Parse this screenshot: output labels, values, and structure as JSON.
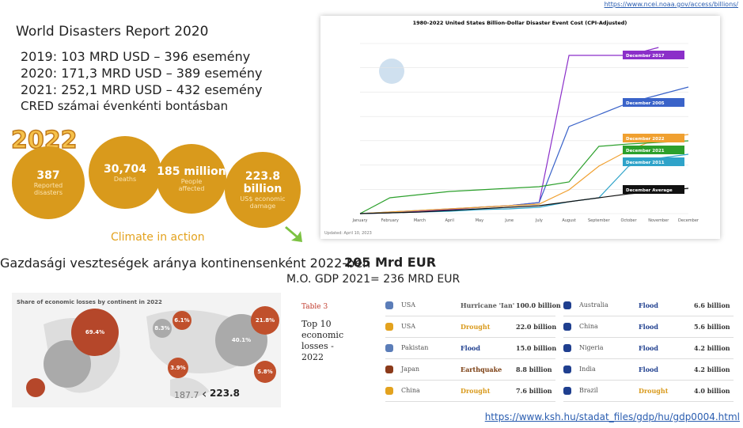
{
  "source_top": "https://www.ncei.noaa.gov/access/billions/",
  "title": "World Disasters Report 2020",
  "stats": [
    "2019: 103 MRD USD – 396 esemény",
    "2020: 171,3 MRD USD – 389 esemény",
    "2021: 252,1 MRD USD – 432 esemény",
    "CRED számai évenkénti bontásban"
  ],
  "year_badge": "2022",
  "bubbles": [
    {
      "value": "387",
      "label": "Reported disasters"
    },
    {
      "value": "30,704",
      "label": "Deaths"
    },
    {
      "value": "185 million",
      "label": "People affected"
    },
    {
      "value": "223.8 billion",
      "label": "US$ economic damage"
    }
  ],
  "climate": "Climate in action",
  "noaa_chart": {
    "title": "1980-2022 United States Billion-Dollar Disaster Event Cost (CPI-Adjusted)",
    "months": [
      "January",
      "February",
      "March",
      "April",
      "May",
      "June",
      "July",
      "August",
      "September",
      "October",
      "November",
      "December"
    ],
    "callouts": [
      "December 2017",
      "December 2005",
      "December 2022",
      "December 2021",
      "December 2011",
      "December Average"
    ],
    "updated": "Updated: April 10, 2023"
  },
  "losses_title": "Gazdasági veszteségek aránya kontinensenként 2022-ben",
  "map_title": "Share of economic losses by continent in 2022",
  "map_labels": [
    "69.4%",
    "40.1%",
    "21.8%",
    "8.3%",
    "6.1%",
    "5.8%",
    "3.9%"
  ],
  "compare": [
    "187.7",
    "223.8"
  ],
  "eur_total": "205 Mrd EUR",
  "gdp": "M.O. GDP 2021= 236 MRD EUR",
  "table": {
    "caption": "Table 3",
    "heading": "Top 10 economic losses - 2022",
    "rows": [
      [
        [
          "USA",
          "Hurricane 'Ian'",
          "100.0 billion"
        ],
        [
          "Australia",
          "Flood",
          "6.6 billion"
        ]
      ],
      [
        [
          "USA",
          "Drought",
          "22.0 billion"
        ],
        [
          "China",
          "Flood",
          "5.6 billion"
        ]
      ],
      [
        [
          "Pakistan",
          "Flood",
          "15.0 billion"
        ],
        [
          "Nigeria",
          "Flood",
          "4.2 billion"
        ]
      ],
      [
        [
          "Japan",
          "Earthquake",
          "8.8 billion"
        ],
        [
          "India",
          "Flood",
          "4.2 billion"
        ]
      ],
      [
        [
          "China",
          "Drought",
          "7.6 billion"
        ],
        [
          "Brazil",
          "Drought",
          "4.0 billion"
        ]
      ]
    ]
  },
  "source_bottom": "https://www.ksh.hu/stadat_files/gdp/hu/gdp0004.html"
}
